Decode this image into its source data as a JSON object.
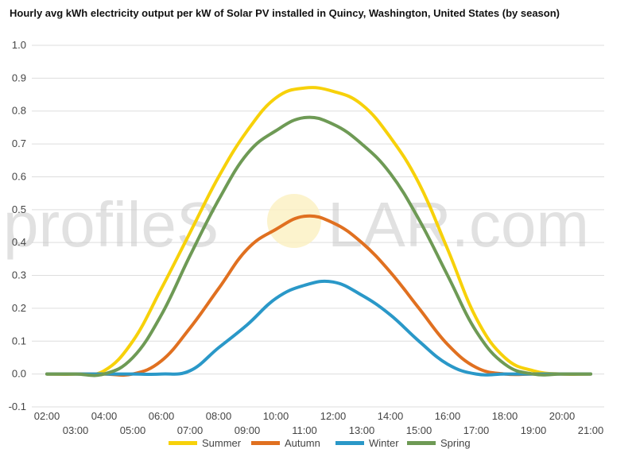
{
  "watermark": {
    "left": "profileS",
    "right": "LAR.com"
  },
  "chart_data": {
    "type": "line",
    "title": "Hourly avg kWh electricity output per kW of Solar PV installed in Quincy, Washington, United States (by season)",
    "xlabel": "",
    "ylabel": "",
    "x": [
      "02:00",
      "03:00",
      "04:00",
      "05:00",
      "06:00",
      "07:00",
      "08:00",
      "09:00",
      "10:00",
      "11:00",
      "12:00",
      "13:00",
      "14:00",
      "15:00",
      "16:00",
      "17:00",
      "18:00",
      "19:00",
      "20:00",
      "21:00"
    ],
    "x_ticks_top": [
      "02:00",
      "04:00",
      "06:00",
      "08:00",
      "10:00",
      "12:00",
      "14:00",
      "16:00",
      "18:00",
      "20:00"
    ],
    "x_ticks_bottom": [
      "03:00",
      "05:00",
      "07:00",
      "09:00",
      "11:00",
      "13:00",
      "15:00",
      "17:00",
      "19:00",
      "21:00"
    ],
    "ylim": [
      -0.1,
      1.0
    ],
    "y_ticks": [
      "-0.1",
      "0.0",
      "0.1",
      "0.2",
      "0.3",
      "0.4",
      "0.5",
      "0.6",
      "0.7",
      "0.8",
      "0.9",
      "1.0"
    ],
    "grid": true,
    "legend_position": "bottom",
    "series": [
      {
        "name": "Summer",
        "color": "#f7d10a",
        "values": [
          0.0,
          0.0,
          0.01,
          0.1,
          0.26,
          0.43,
          0.6,
          0.74,
          0.84,
          0.87,
          0.86,
          0.82,
          0.72,
          0.58,
          0.38,
          0.17,
          0.05,
          0.01,
          0.0,
          0.0
        ]
      },
      {
        "name": "Autumn",
        "color": "#e07020",
        "values": [
          0.0,
          0.0,
          0.0,
          0.0,
          0.04,
          0.14,
          0.26,
          0.38,
          0.44,
          0.48,
          0.46,
          0.4,
          0.31,
          0.2,
          0.09,
          0.02,
          0.0,
          0.0,
          0.0,
          0.0
        ]
      },
      {
        "name": "Winter",
        "color": "#2a98c8",
        "values": [
          0.0,
          0.0,
          0.0,
          0.0,
          0.0,
          0.01,
          0.08,
          0.15,
          0.23,
          0.27,
          0.28,
          0.24,
          0.18,
          0.1,
          0.03,
          0.0,
          0.0,
          0.0,
          0.0,
          0.0
        ]
      },
      {
        "name": "Spring",
        "color": "#6e9a55",
        "values": [
          0.0,
          0.0,
          0.0,
          0.05,
          0.18,
          0.36,
          0.53,
          0.67,
          0.74,
          0.78,
          0.76,
          0.7,
          0.61,
          0.47,
          0.3,
          0.13,
          0.03,
          0.0,
          0.0,
          0.0
        ]
      }
    ]
  }
}
